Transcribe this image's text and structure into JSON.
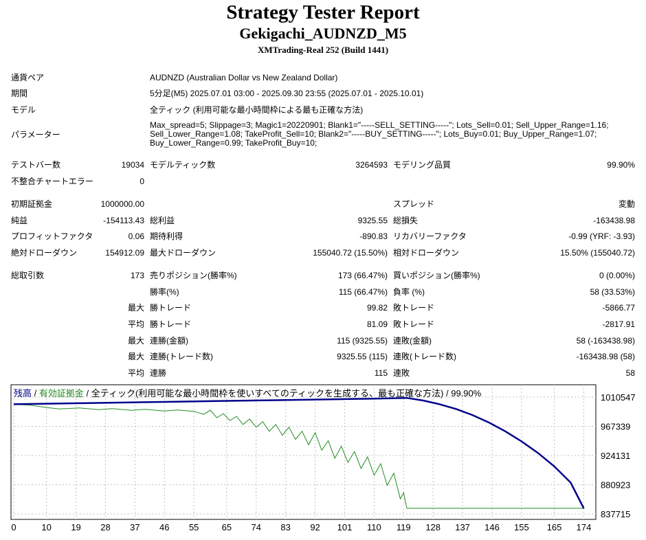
{
  "header": {
    "title": "Strategy Tester Report",
    "subtitle": "Gekigachi_AUDNZD_M5",
    "build": "XMTrading-Real 252 (Build 1441)"
  },
  "settings": {
    "pair_label": "通貨ペア",
    "pair_value": "AUDNZD (Australian Dollar vs New Zealand Dollar)",
    "period_label": "期間",
    "period_value": "5分足(M5) 2025.07.01 03:00 - 2025.09.30 23:55 (2025.07.01 - 2025.10.01)",
    "model_label": "モデル",
    "model_value": "全ティック (利用可能な最小時間枠による最も正確な方法)",
    "params_label": "パラメーター",
    "params_value": "Max_spread=5; Slippage=3; Magic1=20220901; Blank1=\"-----SELL_SETTING-----\"; Lots_Sell=0.01; Sell_Upper_Range=1.16; Sell_Lower_Range=1.08; TakeProfit_Sell=10; Blank2=\"-----BUY_SETTING-----\"; Lots_Buy=0.01; Buy_Upper_Range=1.07; Buy_Lower_Range=0.99; TakeProfit_Buy=10;"
  },
  "stats": {
    "bars_label": "テストバー数",
    "bars_value": "19034",
    "ticks_label": "モデルティック数",
    "ticks_value": "3264593",
    "quality_label": "モデリング品質",
    "quality_value": "99.90%",
    "mismatch_label": "不整合チャートエラー",
    "mismatch_value": "0",
    "deposit_label": "初期証拠金",
    "deposit_value": "1000000.00",
    "spread_label": "スプレッド",
    "spread_value": "変動",
    "net_label": "純益",
    "net_value": "-154113.43",
    "gross_profit_label": "総利益",
    "gross_profit_value": "9325.55",
    "gross_loss_label": "総損失",
    "gross_loss_value": "-163438.98",
    "pf_label": "プロフィットファクタ",
    "pf_value": "0.06",
    "expected_label": "期待利得",
    "expected_value": "-890.83",
    "recovery_label": "リカバリーファクタ",
    "recovery_value": "-0.99 (YRF: -3.93)",
    "abs_dd_label": "絶対ドローダウン",
    "abs_dd_value": "154912.09",
    "max_dd_label": "最大ドローダウン",
    "max_dd_value": "155040.72 (15.50%)",
    "rel_dd_label": "相対ドローダウン",
    "rel_dd_value": "15.50% (155040.72)",
    "total_trades_label": "総取引数",
    "total_trades_value": "173",
    "short_label": "売りポジション(勝率%)",
    "short_value": "173 (66.47%)",
    "long_label": "買いポジション(勝率%)",
    "long_value": "0 (0.00%)",
    "win_rate_label": "勝率(%)",
    "win_rate_value": "115 (66.47%)",
    "loss_rate_label": "負率 (%)",
    "loss_rate_value": "58 (33.53%)",
    "max_label": "最大",
    "avg_label": "平均",
    "largest_win_label": "勝トレード",
    "largest_win_value": "99.82",
    "largest_loss_label": "敗トレード",
    "largest_loss_value": "-5866.77",
    "avg_win_label": "勝トレード",
    "avg_win_value": "81.09",
    "avg_loss_label": "敗トレード",
    "avg_loss_value": "-2817.91",
    "max_consec_wins_amt_label": "連勝(金額)",
    "max_consec_wins_amt_value": "115 (9325.55)",
    "max_consec_losses_amt_label": "連敗(金額)",
    "max_consec_losses_amt_value": "58 (-163438.98)",
    "max_consec_wins_cnt_label": "連勝(トレード数)",
    "max_consec_wins_cnt_value": "9325.55 (115)",
    "max_consec_losses_cnt_label": "連敗(トレード数)",
    "max_consec_losses_cnt_value": "-163438.98 (58)",
    "avg_consec_wins_label": "連勝",
    "avg_consec_wins_value": "115",
    "avg_consec_losses_label": "連敗",
    "avg_consec_losses_value": "58"
  },
  "chart": {
    "legend_balance": "残高",
    "legend_sep1": " / ",
    "legend_equity": "有効証拠金",
    "legend_sep2": " / ",
    "legend_model": "全ティック(利用可能な最小時間枠を使いすべてのティックを生成する、最も正確な方法)",
    "legend_sep3": " / ",
    "legend_quality": "99.90%",
    "colors": {
      "balance": "#00008b",
      "equity": "#228b22",
      "grid": "#c0c0c0"
    }
  },
  "chart_data": {
    "type": "line",
    "x_ticks": [
      "0",
      "10",
      "19",
      "28",
      "37",
      "46",
      "55",
      "65",
      "74",
      "83",
      "92",
      "101",
      "110",
      "119",
      "128",
      "137",
      "146",
      "155",
      "165",
      "174"
    ],
    "y_ticks": [
      "1010547",
      "967339",
      "924131",
      "880923",
      "837715"
    ],
    "xlim": [
      0,
      176
    ],
    "ylim": [
      837715,
      1010547
    ],
    "series": [
      {
        "name": "残高",
        "x": [
          0,
          20,
          40,
          60,
          80,
          100,
          110,
          115,
          120,
          125,
          130,
          135,
          140,
          145,
          150,
          155,
          160,
          165,
          170,
          174
        ],
        "y": [
          1000000,
          1001500,
          1003000,
          1004500,
          1006000,
          1007500,
          1008300,
          1008800,
          1009325,
          1005500,
          1000000,
          993000,
          984000,
          973000,
          960000,
          945000,
          928000,
          908000,
          884000,
          845887
        ]
      },
      {
        "name": "有効証拠金",
        "x": [
          0,
          5,
          8,
          10,
          14,
          20,
          26,
          30,
          36,
          40,
          46,
          50,
          55,
          58,
          60,
          62,
          64,
          66,
          68,
          70,
          72,
          74,
          76,
          78,
          80,
          82,
          84,
          86,
          88,
          90,
          92,
          94,
          96,
          98,
          100,
          102,
          104,
          106,
          108,
          110,
          112,
          114,
          116,
          118,
          119,
          120,
          130,
          140,
          150,
          160,
          174
        ],
        "y": [
          1000000,
          998500,
          996500,
          995000,
          993000,
          994500,
          992000,
          993500,
          991000,
          992500,
          990000,
          991500,
          989500,
          985000,
          991000,
          980000,
          986000,
          976000,
          982000,
          970000,
          978000,
          966000,
          974000,
          960000,
          970000,
          954000,
          966000,
          948000,
          960000,
          940000,
          958000,
          932000,
          946000,
          920000,
          938000,
          914000,
          930000,
          905000,
          922000,
          895000,
          912000,
          880000,
          898000,
          860000,
          869000,
          846000,
          846000,
          846000,
          846000,
          846000,
          846000
        ]
      }
    ]
  }
}
